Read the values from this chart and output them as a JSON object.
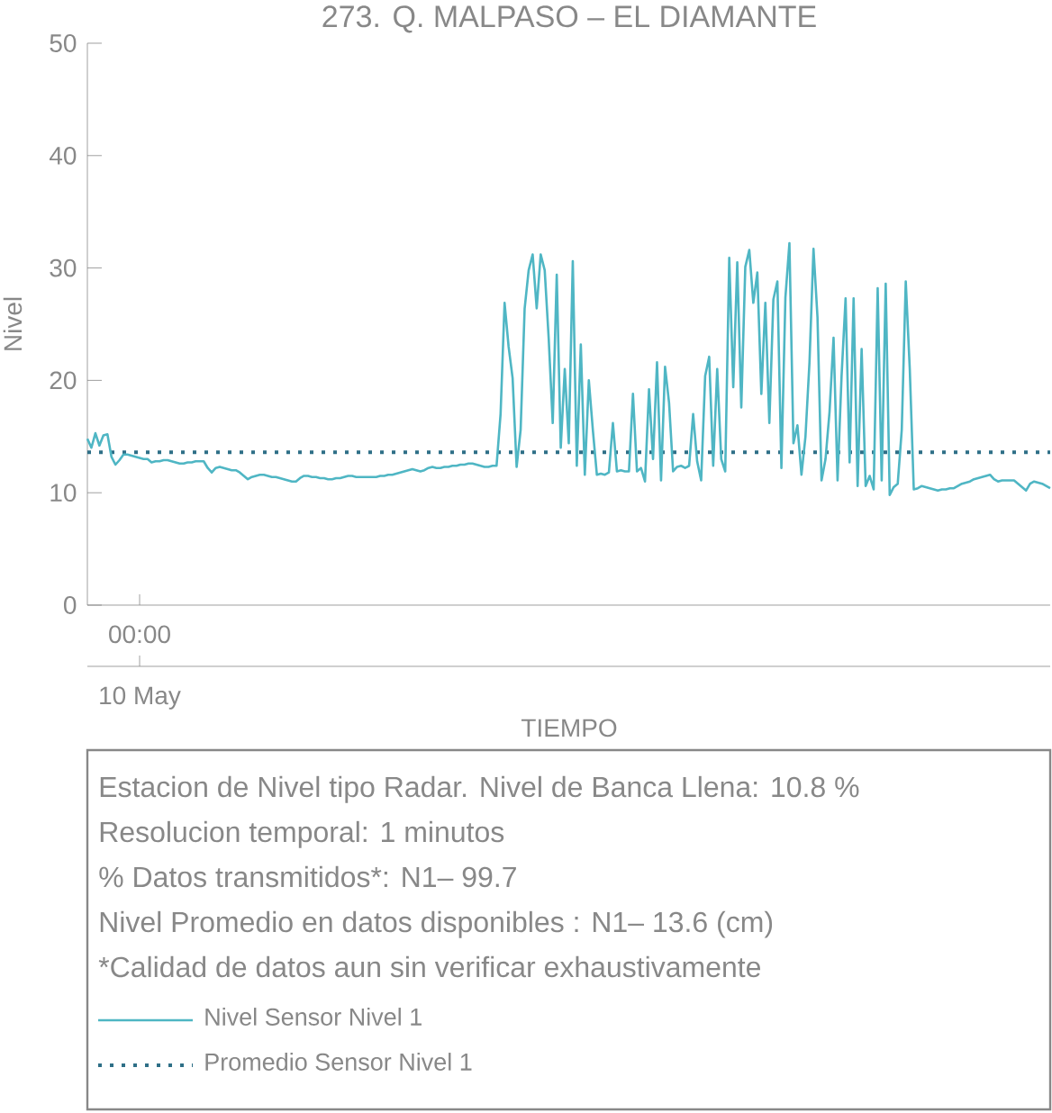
{
  "chart_data": {
    "type": "line",
    "title": "273. Q. MALPASO – EL DIAMANTE",
    "xlabel": "TIEMPO",
    "ylabel": "Nivel",
    "categories": [
      null,
      null,
      null,
      null,
      null,
      null,
      null,
      null,
      null,
      null,
      null,
      null,
      null,
      null,
      null,
      null,
      null,
      null,
      null,
      null,
      null,
      null,
      null,
      null,
      null,
      null,
      null,
      null,
      null,
      null,
      null,
      null,
      null,
      null,
      null,
      null,
      null,
      null,
      null,
      null,
      null,
      null,
      null,
      null,
      null,
      null,
      null,
      null,
      null,
      null,
      null,
      null,
      null,
      null,
      null,
      null,
      null,
      null,
      null,
      null,
      null,
      null,
      null,
      null,
      null,
      null,
      null,
      null,
      null,
      null,
      null,
      null,
      null,
      null,
      null,
      null,
      null,
      null,
      null,
      null,
      null,
      null,
      null,
      null,
      null,
      null,
      null,
      null,
      null,
      null,
      null,
      null,
      null,
      null,
      null,
      null,
      null,
      null,
      null,
      null,
      null,
      null,
      null,
      null,
      null,
      null,
      null,
      null,
      null,
      null,
      null,
      null,
      null,
      null,
      null,
      null,
      null,
      null,
      null,
      null,
      null,
      null,
      null,
      null,
      null,
      null,
      null,
      null,
      null,
      null,
      null,
      null,
      null,
      null,
      null,
      null,
      null,
      null,
      null,
      null,
      null,
      null,
      null,
      null,
      null,
      null,
      null,
      null,
      null,
      null,
      null,
      null,
      null,
      null,
      null,
      null,
      null,
      null,
      null,
      null,
      null,
      null,
      null,
      null,
      null,
      null,
      null,
      null,
      null,
      null,
      null,
      null,
      null,
      null,
      null,
      null,
      null,
      null,
      null,
      null,
      null,
      null,
      null,
      null,
      null,
      null,
      null,
      null,
      null,
      null,
      null,
      null,
      null,
      null,
      null,
      null,
      null,
      null,
      null,
      null,
      null,
      null,
      null,
      null,
      null,
      null,
      null,
      null,
      null,
      null,
      null,
      null,
      null,
      null,
      null,
      null,
      null,
      null,
      null,
      null,
      null,
      null,
      null,
      null,
      null,
      null,
      null,
      null,
      null,
      null,
      null,
      null,
      null,
      null,
      null,
      null,
      null,
      null,
      null,
      null,
      null
    ],
    "ylim": [
      0,
      50
    ],
    "yticks": [
      0,
      10,
      20,
      30,
      40,
      50
    ],
    "legend": "bottom",
    "marker": "none",
    "annotations": [
      "00:00",
      "10 May",
      "Estacion de Nivel tipo Radar. Nivel de Banca Llena: 10.8 %",
      "Resolucion temporal: 1 minutos",
      "% Datos transmitidos*: N1– 99.7",
      "Nivel Promedio en datos disponibles : N1– 13.6 (cm)",
      "*Calidad de datos aun sin verificar exhaustivamente"
    ],
    "ref_lines": [
      {
        "axis": "y",
        "value": 13.6,
        "label": "Promedio Sensor Nivel 1",
        "color": "#2e6f87",
        "line_style": "dotted"
      }
    ],
    "series": [
      {
        "name": "Nivel Sensor Nivel 1",
        "color": "#4fb6c4",
        "line_style": "solid",
        "values": [
          14.8,
          14.0,
          15.3,
          14.2,
          15.1,
          15.2,
          13.2,
          12.5,
          12.9,
          13.4,
          13.4,
          13.3,
          13.2,
          13.1,
          13.0,
          13.0,
          12.7,
          12.8,
          12.8,
          12.9,
          12.9,
          12.8,
          12.7,
          12.6,
          12.6,
          12.7,
          12.7,
          12.8,
          12.8,
          12.8,
          12.2,
          11.8,
          12.2,
          12.3,
          12.2,
          12.1,
          12.0,
          12.0,
          11.8,
          11.5,
          11.2,
          11.4,
          11.5,
          11.6,
          11.6,
          11.5,
          11.4,
          11.4,
          11.3,
          11.2,
          11.1,
          11.0,
          11.0,
          11.3,
          11.5,
          11.5,
          11.4,
          11.4,
          11.3,
          11.3,
          11.2,
          11.2,
          11.3,
          11.3,
          11.4,
          11.5,
          11.5,
          11.4,
          11.4,
          11.4,
          11.4,
          11.4,
          11.4,
          11.5,
          11.5,
          11.6,
          11.6,
          11.7,
          11.8,
          11.9,
          12.0,
          12.1,
          12.0,
          11.9,
          12.0,
          12.2,
          12.3,
          12.2,
          12.2,
          12.3,
          12.3,
          12.4,
          12.4,
          12.5,
          12.5,
          12.6,
          12.6,
          12.5,
          12.4,
          12.3,
          12.3,
          12.4,
          12.4,
          17.0,
          26.9,
          23.0,
          20.2,
          12.3,
          15.6,
          26.4,
          29.8,
          31.2,
          26.4,
          31.2,
          29.8,
          23.7,
          16.2,
          29.4,
          14.0,
          21.0,
          14.4,
          30.6,
          12.4,
          23.2,
          11.6,
          20.0,
          15.6,
          11.6,
          11.7,
          11.6,
          11.8,
          16.2,
          11.9,
          12.0,
          11.9,
          11.9,
          18.8,
          11.9,
          12.2,
          11.0,
          19.2,
          13.0,
          21.6,
          11.1,
          21.2,
          18.0,
          11.9,
          12.3,
          12.4,
          12.2,
          12.4,
          17.0,
          12.8,
          11.1,
          20.4,
          22.1,
          12.4,
          21.0,
          13.0,
          11.9,
          30.9,
          19.4,
          30.5,
          17.6,
          30.1,
          31.6,
          26.9,
          29.6,
          18.8,
          26.9,
          16.2,
          27.2,
          28.8,
          12.2,
          27.4,
          32.2,
          14.4,
          16.0,
          11.6,
          15.0,
          21.6,
          31.7,
          25.6,
          11.1,
          13.0,
          17.2,
          23.8,
          11.1,
          20.4,
          27.3,
          12.7,
          27.3,
          10.6,
          22.8,
          10.6,
          11.5,
          10.3,
          28.2,
          11.1,
          28.6,
          9.8,
          10.5,
          10.8,
          15.6,
          28.8,
          21.0,
          10.3,
          10.4,
          10.6,
          10.5,
          10.4,
          10.3,
          10.2,
          10.3,
          10.3,
          10.4,
          10.4,
          10.6,
          10.8,
          10.9,
          11.0,
          11.2,
          11.3,
          11.4,
          11.5,
          11.6,
          11.2,
          11.0,
          11.1,
          11.1,
          11.1,
          11.1,
          10.8,
          10.5,
          10.2,
          10.8,
          11.0,
          10.9,
          10.8,
          10.6,
          10.4
        ]
      }
    ]
  }
}
